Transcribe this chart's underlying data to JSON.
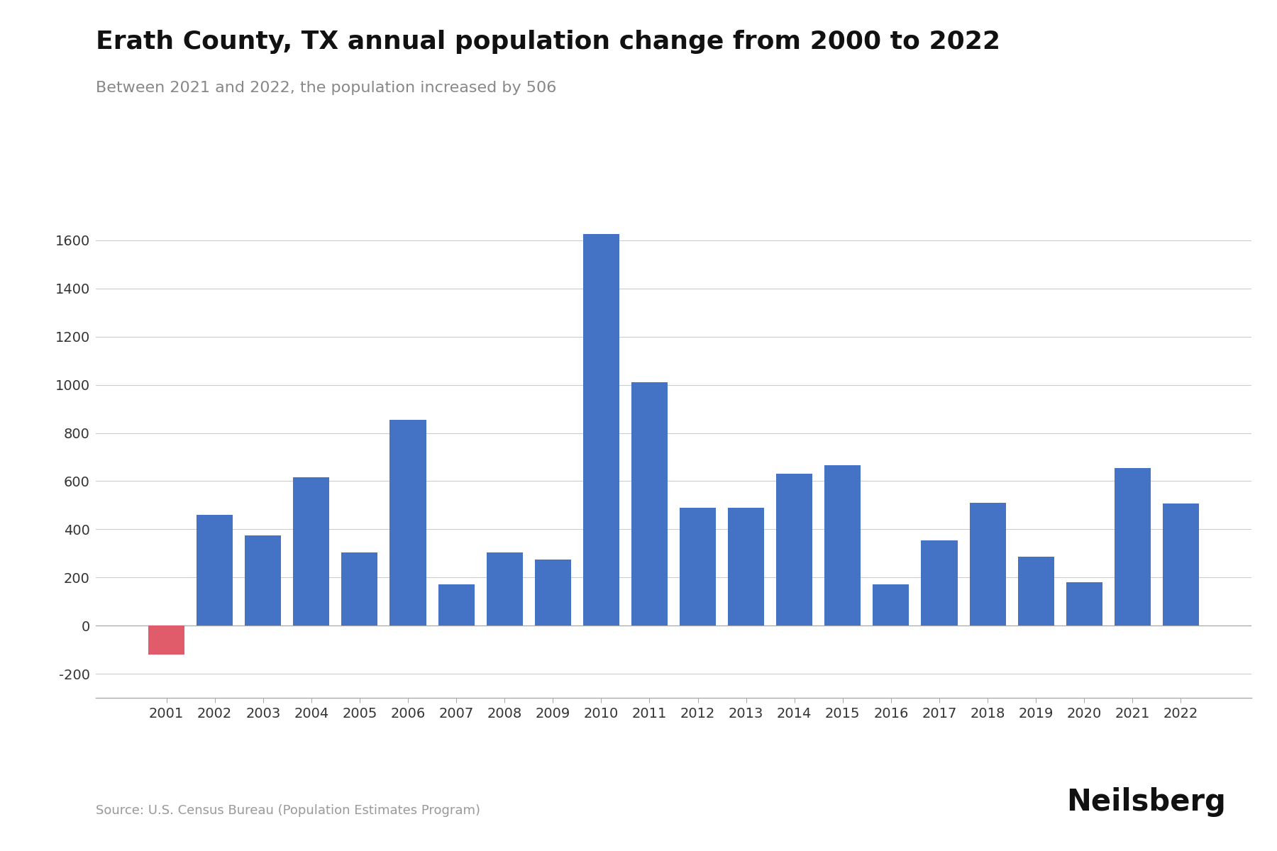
{
  "title": "Erath County, TX annual population change from 2000 to 2022",
  "subtitle": "Between 2021 and 2022, the population increased by 506",
  "source": "Source: U.S. Census Bureau (Population Estimates Program)",
  "years": [
    2001,
    2002,
    2003,
    2004,
    2005,
    2006,
    2007,
    2008,
    2009,
    2010,
    2011,
    2012,
    2013,
    2014,
    2015,
    2016,
    2017,
    2018,
    2019,
    2020,
    2021,
    2022
  ],
  "values": [
    -120,
    460,
    375,
    615,
    305,
    855,
    170,
    305,
    275,
    1625,
    1010,
    490,
    490,
    630,
    665,
    170,
    355,
    510,
    285,
    180,
    655,
    506
  ],
  "bar_color_pos": "#4472C4",
  "bar_color_neg": "#E05C6B",
  "background_color": "#ffffff",
  "ylim": [
    -300,
    1750
  ],
  "yticks": [
    -200,
    0,
    200,
    400,
    600,
    800,
    1000,
    1200,
    1400,
    1600
  ],
  "title_fontsize": 26,
  "subtitle_fontsize": 16,
  "source_fontsize": 13,
  "tick_fontsize": 14,
  "brand": "Neilsberg",
  "brand_fontsize": 30
}
